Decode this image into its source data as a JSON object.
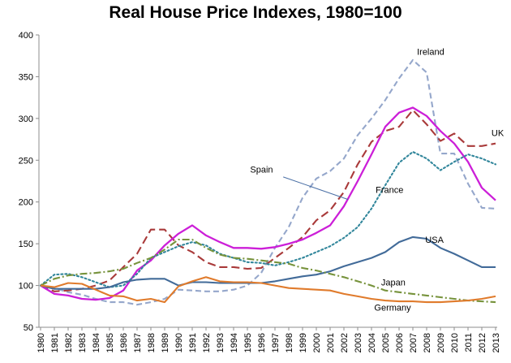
{
  "chart_data": {
    "type": "line",
    "title": "Real House Price Indexes, 1980=100",
    "xlabel": "",
    "ylabel": "",
    "ylim": [
      50,
      400
    ],
    "yticks": [
      50,
      100,
      150,
      200,
      250,
      300,
      350,
      400
    ],
    "grid": false,
    "x": [
      "1980",
      "1981",
      "1982",
      "1983",
      "1984",
      "1985",
      "1986",
      "1987",
      "1988",
      "1989",
      "1990",
      "1991",
      "1992",
      "1993",
      "1994",
      "1995",
      "1996",
      "1997",
      "1998",
      "1999",
      "2000",
      "2001",
      "2002",
      "2003",
      "2004",
      "2005",
      "2006",
      "2007",
      "2008",
      "2009",
      "2010",
      "2011",
      "2012",
      "2013"
    ],
    "series": [
      {
        "name": "Ireland",
        "color": "#95A7CB",
        "dash": "dash",
        "values": [
          100,
          97,
          92,
          89,
          84,
          80,
          80,
          77,
          80,
          84,
          95,
          94,
          93,
          93,
          95,
          100,
          115,
          145,
          170,
          205,
          228,
          237,
          252,
          280,
          300,
          322,
          348,
          370,
          355,
          258,
          258,
          222,
          193,
          192
        ]
      },
      {
        "name": "UK",
        "color": "#A93A3A",
        "dash": "longdash",
        "values": [
          100,
          93,
          94,
          96,
          100,
          106,
          122,
          138,
          167,
          167,
          148,
          140,
          128,
          122,
          122,
          120,
          121,
          133,
          145,
          158,
          178,
          190,
          212,
          245,
          272,
          285,
          290,
          310,
          293,
          273,
          282,
          267,
          267,
          270
        ]
      },
      {
        "name": "Spain",
        "color": "#CC1FD8",
        "dash": "solid",
        "values": [
          100,
          90,
          88,
          84,
          83,
          85,
          94,
          118,
          130,
          148,
          162,
          172,
          160,
          152,
          145,
          145,
          144,
          146,
          150,
          155,
          163,
          172,
          195,
          225,
          257,
          290,
          307,
          313,
          303,
          285,
          270,
          248,
          217,
          202
        ]
      },
      {
        "name": "France",
        "color": "#31869B",
        "dash": "dot",
        "values": [
          100,
          113,
          114,
          110,
          104,
          98,
          100,
          114,
          133,
          140,
          147,
          152,
          148,
          138,
          133,
          128,
          127,
          124,
          128,
          133,
          140,
          147,
          157,
          170,
          192,
          220,
          247,
          260,
          252,
          238,
          248,
          257,
          252,
          245
        ]
      },
      {
        "name": "USA",
        "color": "#426B99",
        "dash": "solid",
        "values": [
          100,
          96,
          96,
          96,
          96,
          98,
          104,
          107,
          108,
          108,
          100,
          104,
          104,
          103,
          103,
          103,
          103,
          105,
          108,
          111,
          113,
          117,
          123,
          128,
          133,
          140,
          152,
          158,
          156,
          145,
          138,
          130,
          122,
          122
        ]
      },
      {
        "name": "Japan",
        "color": "#77933C",
        "dash": "dashdot",
        "values": [
          100,
          108,
          112,
          114,
          115,
          117,
          120,
          127,
          133,
          143,
          155,
          155,
          145,
          137,
          133,
          132,
          130,
          128,
          126,
          121,
          118,
          114,
          110,
          105,
          100,
          94,
          92,
          90,
          88,
          86,
          84,
          82,
          81,
          80
        ]
      },
      {
        "name": "Germany",
        "color": "#E07B2C",
        "dash": "solid",
        "values": [
          100,
          98,
          103,
          102,
          95,
          88,
          87,
          82,
          84,
          80,
          99,
          105,
          110,
          105,
          104,
          104,
          103,
          100,
          97,
          96,
          95,
          94,
          90,
          87,
          84,
          82,
          81,
          81,
          80,
          80,
          81,
          82,
          84,
          87
        ]
      }
    ]
  }
}
